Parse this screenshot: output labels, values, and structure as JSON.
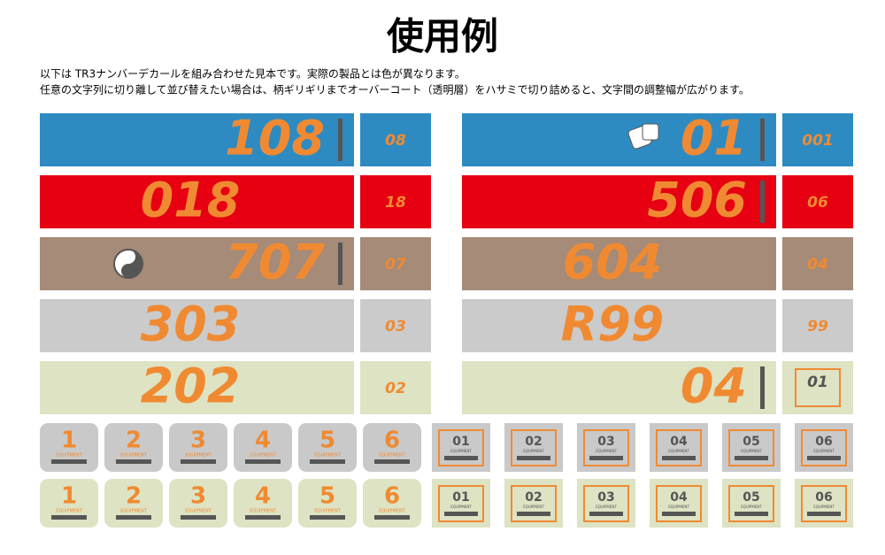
{
  "header": {
    "title": "使用例",
    "lines": [
      "以下は TR3ナンバーデカールを組み合わせた見本です。実際の製品とは色が異なります。",
      "任意の文字列に切り離して並び替えたい場合は、柄ギリギリまでオーバーコート（透明層）をハサミで切り詰めると、文字間の調整幅が広がります。"
    ]
  },
  "text_color": "#f08a32",
  "panels": [
    {
      "big": "108",
      "small": "08",
      "bg": "#2e8bc2"
    },
    {
      "big": "018",
      "small": "18",
      "bg": "#e60012"
    },
    {
      "big": "707",
      "small": "07",
      "bg": "#a58b78"
    },
    {
      "big": "303",
      "small": "03",
      "bg": "#cbcbcb"
    },
    {
      "big": "202",
      "small": "02",
      "bg": "#dde3c3"
    },
    {
      "big": "01",
      "small": "001",
      "bg": "#2e8bc2"
    },
    {
      "big": "506",
      "small": "06",
      "bg": "#e60012"
    },
    {
      "big": "604",
      "small": "04",
      "bg": "#a58b78"
    },
    {
      "big": "R99",
      "small": "99",
      "bg": "#cbcbcb"
    },
    {
      "big": "04",
      "small": "01",
      "bg": "#dde3c3"
    }
  ],
  "tiles": {
    "label": "EQUIPMENT",
    "numbers": [
      "1",
      "2",
      "3",
      "4",
      "5",
      "6"
    ],
    "boxed": [
      "01",
      "02",
      "03",
      "04",
      "05",
      "06"
    ],
    "row_bgs": [
      "#c9c9c9",
      "#dde3c3"
    ]
  }
}
